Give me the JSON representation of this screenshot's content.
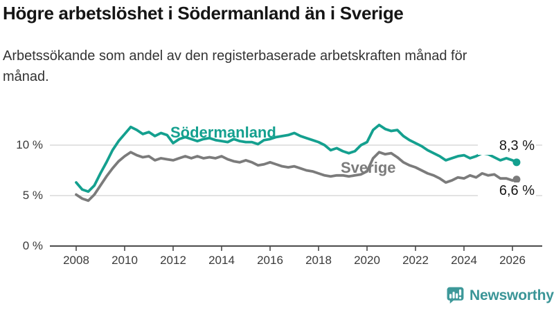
{
  "title": "Högre arbetslöshet i Södermanland än i Sverige",
  "subtitle": "Arbetssökande som andel av den registerbaserade arbetskraften månad för månad.",
  "branding": {
    "logo_text": "Newsworthy",
    "logo_icon": "bar-chart-speech-bubble-icon",
    "logo_text_color": "#3a9597",
    "logo_icon_color": "#3d9899"
  },
  "chart_data": {
    "type": "line",
    "title": "Högre arbetslöshet i Södermanland än i Sverige",
    "xlabel": "",
    "ylabel": "Arbetssökande som andel av den registerbaserade arbetskraften (%)",
    "grid": "horizontal",
    "legend": "inline-labels",
    "xlim": [
      2007.9,
      2026.4
    ],
    "ylim": [
      0,
      12.5
    ],
    "x_ticks": [
      2008,
      2010,
      2012,
      2014,
      2016,
      2018,
      2020,
      2022,
      2024,
      2026
    ],
    "y_ticks": [
      {
        "value": 0,
        "label": "0 %"
      },
      {
        "value": 5,
        "label": "5 %"
      },
      {
        "value": 10,
        "label": "10 %"
      }
    ],
    "x_unit": "year (monthly data, sampled quarterly)",
    "x": [
      2008,
      2008.25,
      2008.5,
      2008.75,
      2009,
      2009.25,
      2009.5,
      2009.75,
      2010,
      2010.25,
      2010.5,
      2010.75,
      2011,
      2011.25,
      2011.5,
      2011.75,
      2012,
      2012.25,
      2012.5,
      2012.75,
      2013,
      2013.25,
      2013.5,
      2013.75,
      2014,
      2014.25,
      2014.5,
      2014.75,
      2015,
      2015.25,
      2015.5,
      2015.75,
      2016,
      2016.25,
      2016.5,
      2016.75,
      2017,
      2017.25,
      2017.5,
      2017.75,
      2018,
      2018.25,
      2018.5,
      2018.75,
      2019,
      2019.25,
      2019.5,
      2019.75,
      2020,
      2020.25,
      2020.5,
      2020.75,
      2021,
      2021.25,
      2021.5,
      2021.75,
      2022,
      2022.25,
      2022.5,
      2022.75,
      2023,
      2023.25,
      2023.5,
      2023.75,
      2024,
      2024.25,
      2024.5,
      2024.75,
      2025,
      2025.25,
      2025.5,
      2025.75,
      2026,
      2026.17
    ],
    "series": [
      {
        "name": "Södermanland",
        "color": "#14a08f",
        "end_value": 8.3,
        "end_label": "8,3 %",
        "values": [
          6.3,
          5.6,
          5.4,
          6.0,
          7.2,
          8.3,
          9.5,
          10.4,
          11.1,
          11.8,
          11.5,
          11.1,
          11.3,
          10.9,
          11.2,
          11.0,
          10.2,
          10.6,
          10.8,
          10.6,
          10.4,
          10.6,
          10.7,
          10.5,
          10.4,
          10.3,
          10.6,
          10.4,
          10.3,
          10.3,
          10.1,
          10.5,
          10.6,
          10.8,
          10.9,
          11.0,
          11.2,
          10.9,
          10.7,
          10.5,
          10.3,
          10.0,
          9.5,
          9.7,
          9.4,
          9.2,
          9.4,
          10.0,
          10.3,
          11.5,
          12.0,
          11.6,
          11.4,
          11.5,
          10.9,
          10.5,
          10.2,
          9.9,
          9.5,
          9.2,
          8.9,
          8.5,
          8.7,
          8.9,
          9.0,
          8.7,
          8.9,
          9.2,
          9.1,
          8.8,
          8.5,
          8.7,
          8.5,
          8.3
        ]
      },
      {
        "name": "Sverige",
        "color": "#7b7b7b",
        "end_value": 6.6,
        "end_label": "6,6 %",
        "values": [
          5.1,
          4.7,
          4.5,
          5.1,
          6.0,
          6.9,
          7.7,
          8.4,
          8.9,
          9.3,
          9.0,
          8.8,
          8.9,
          8.5,
          8.7,
          8.6,
          8.5,
          8.7,
          8.9,
          8.7,
          8.9,
          8.7,
          8.8,
          8.7,
          8.9,
          8.6,
          8.4,
          8.3,
          8.5,
          8.3,
          8.0,
          8.1,
          8.3,
          8.1,
          7.9,
          7.8,
          7.9,
          7.7,
          7.5,
          7.4,
          7.2,
          7.0,
          6.9,
          7.0,
          7.0,
          6.9,
          7.0,
          7.1,
          7.4,
          8.7,
          9.3,
          9.1,
          9.2,
          8.8,
          8.3,
          8.0,
          7.8,
          7.5,
          7.2,
          7.0,
          6.7,
          6.3,
          6.5,
          6.8,
          6.7,
          7.0,
          6.8,
          7.2,
          7.0,
          7.1,
          6.7,
          6.7,
          6.5,
          6.6
        ]
      }
    ],
    "style": {
      "gridline_color": "#d9d9d9",
      "axis_color": "#4a4a4a",
      "text_color": "#3a3a3a"
    }
  }
}
